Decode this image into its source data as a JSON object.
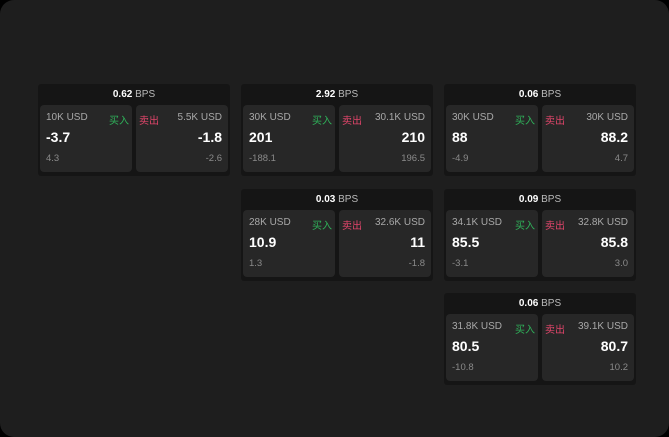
{
  "unit_label": "BPS",
  "buy_label": "买入",
  "sell_label": "卖出",
  "colors": {
    "buy": "#2fb25a",
    "sell": "#e0456a"
  },
  "quotes": [
    {
      "spread": "0.62",
      "buy": {
        "qty": "10K USD",
        "price": "-3.7",
        "change": "4.3"
      },
      "sell": {
        "qty": "5.5K USD",
        "price": "-1.8",
        "change": "-2.6"
      }
    },
    {
      "spread": "2.92",
      "buy": {
        "qty": "30K USD",
        "price": "201",
        "change": "-188.1"
      },
      "sell": {
        "qty": "30.1K USD",
        "price": "210",
        "change": "196.5"
      }
    },
    {
      "spread": "0.06",
      "buy": {
        "qty": "30K USD",
        "price": "88",
        "change": "-4.9"
      },
      "sell": {
        "qty": "30K USD",
        "price": "88.2",
        "change": "4.7"
      }
    },
    {
      "spread": "0.03",
      "buy": {
        "qty": "28K USD",
        "price": "10.9",
        "change": "1.3"
      },
      "sell": {
        "qty": "32.6K USD",
        "price": "11",
        "change": "-1.8"
      }
    },
    {
      "spread": "0.09",
      "buy": {
        "qty": "34.1K USD",
        "price": "85.5",
        "change": "-3.1"
      },
      "sell": {
        "qty": "32.8K USD",
        "price": "85.8",
        "change": "3.0"
      }
    },
    {
      "spread": "0.06",
      "buy": {
        "qty": "31.8K USD",
        "price": "80.5",
        "change": "-10.8"
      },
      "sell": {
        "qty": "39.1K USD",
        "price": "80.7",
        "change": "10.2"
      }
    }
  ]
}
